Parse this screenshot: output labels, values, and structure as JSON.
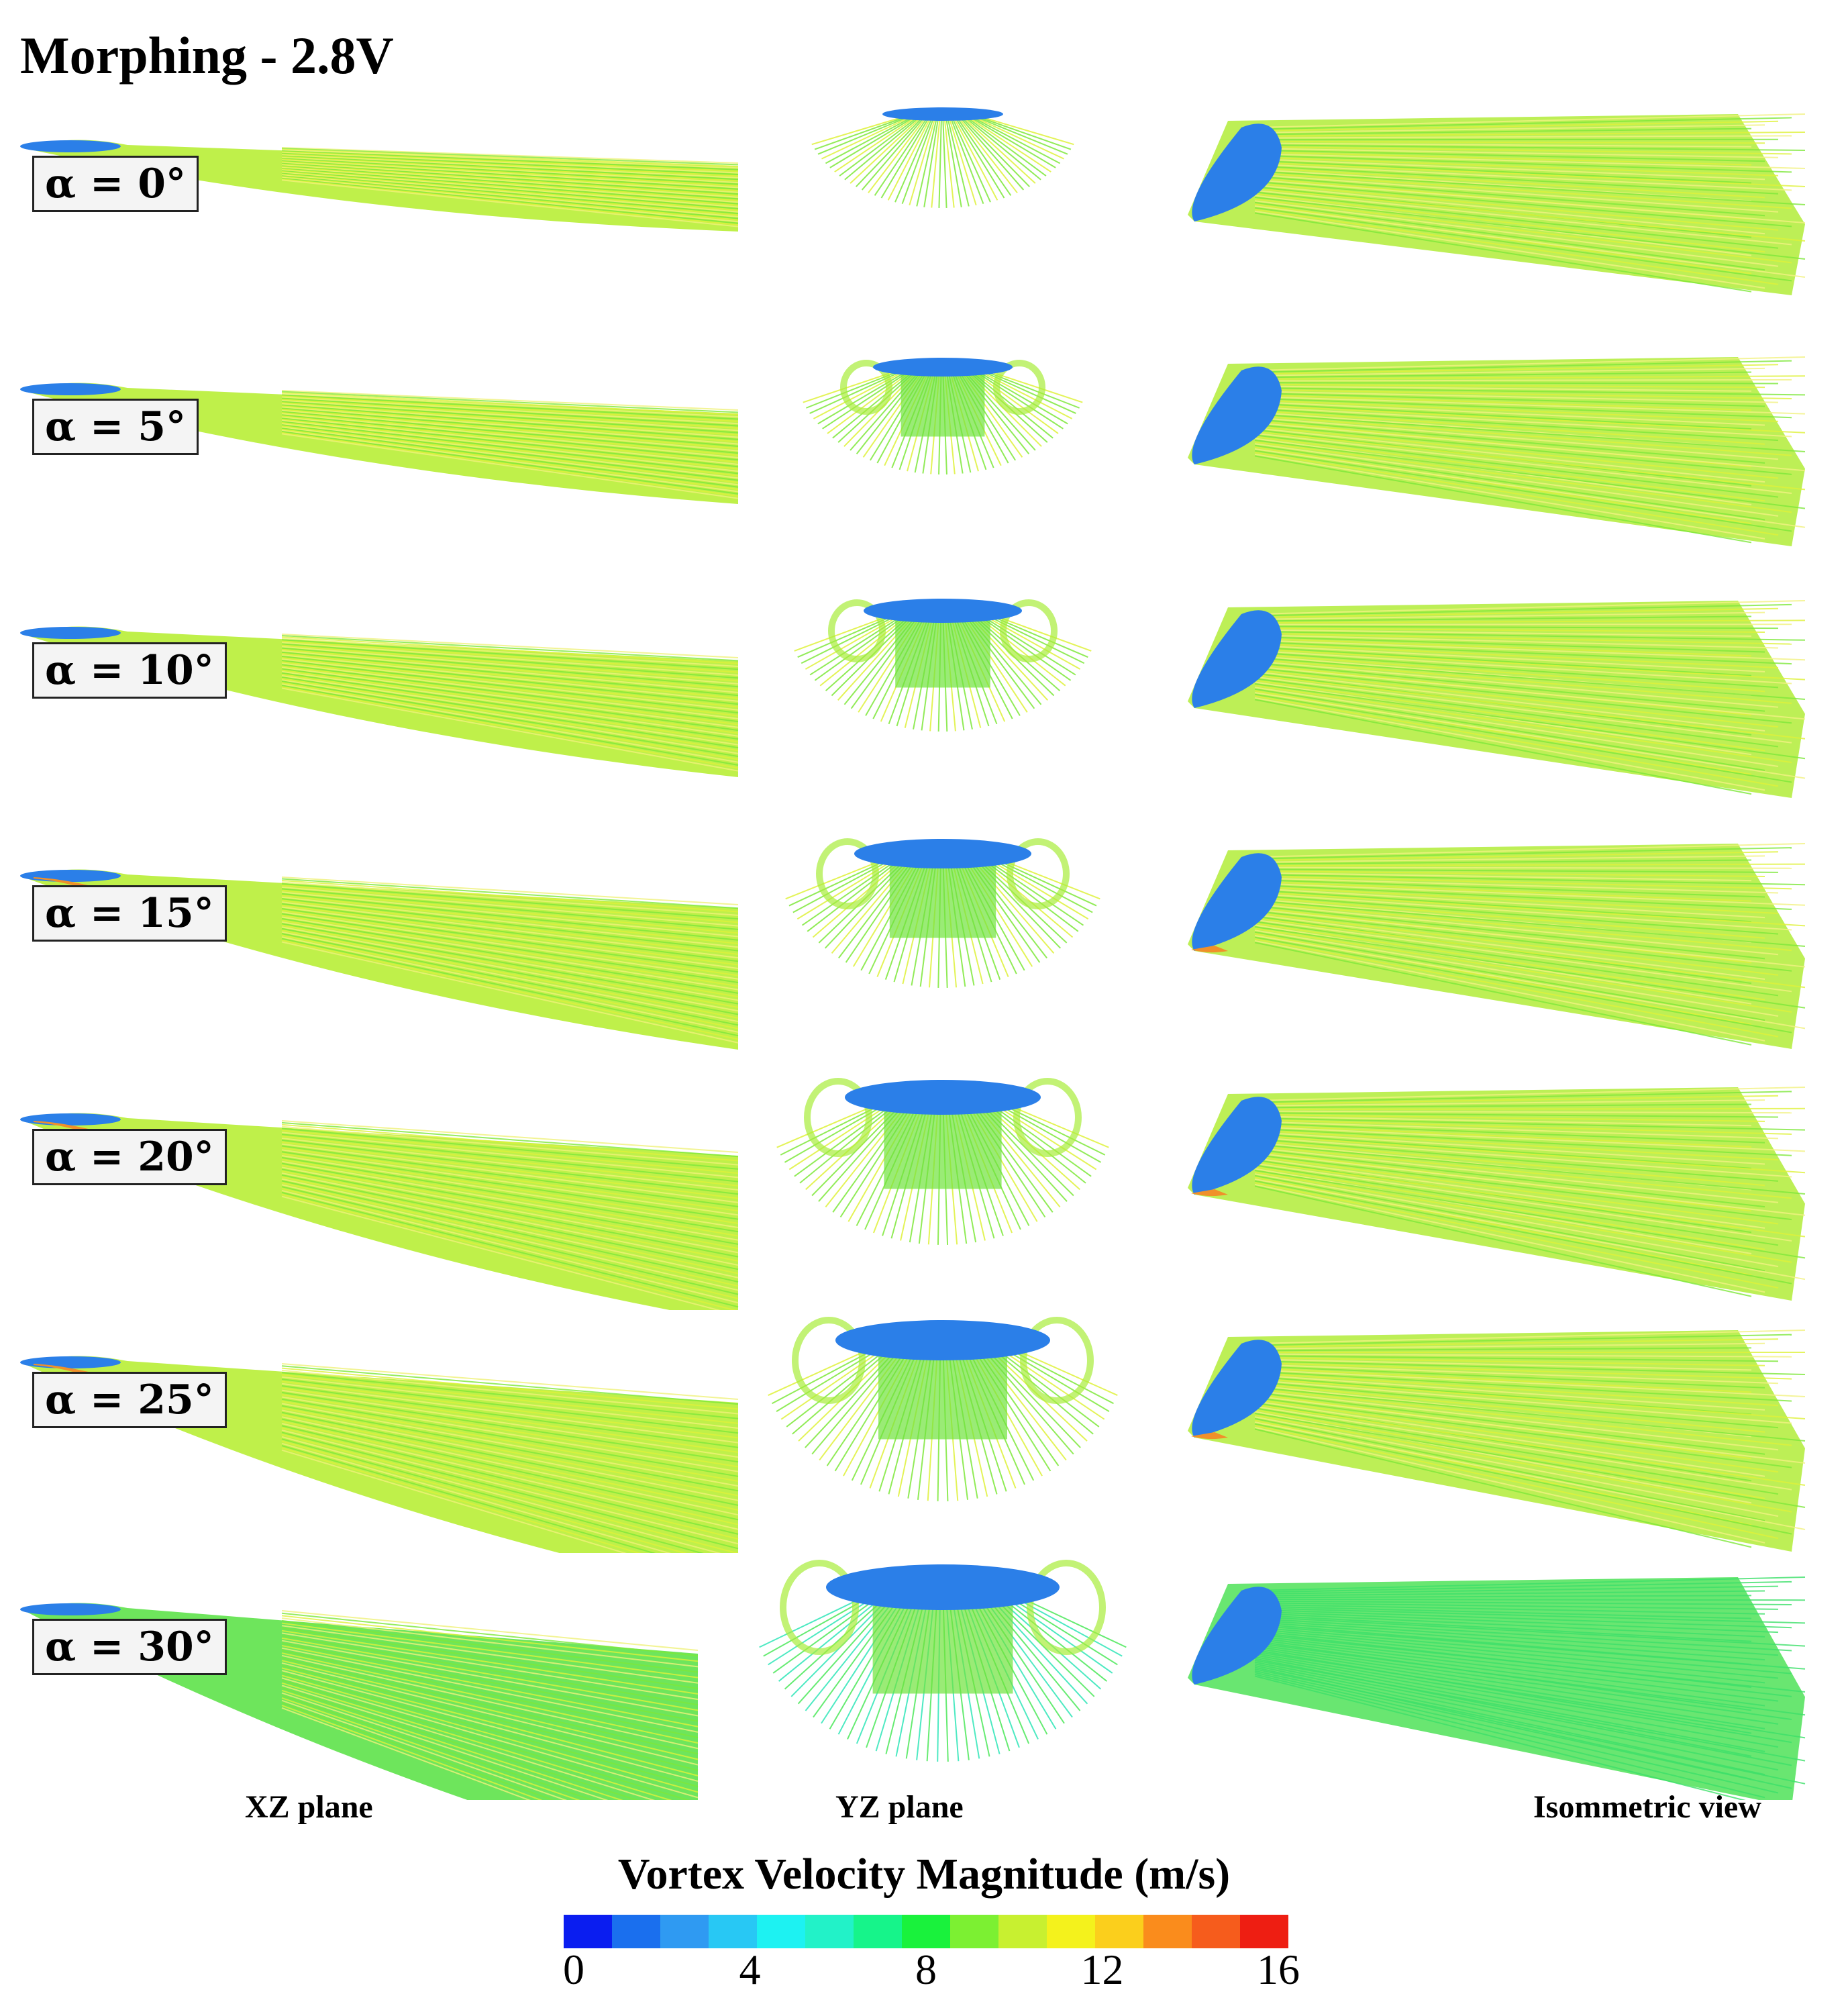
{
  "title": "Morphing - 2.8V",
  "rows": [
    {
      "alpha": "α = 0°"
    },
    {
      "alpha": "α = 5°"
    },
    {
      "alpha": "α = 10°"
    },
    {
      "alpha": "α = 15°"
    },
    {
      "alpha": "α = 20°"
    },
    {
      "alpha": "α = 25°"
    },
    {
      "alpha": "α = 30°"
    }
  ],
  "column_labels": {
    "xz": "XZ plane",
    "yz": "YZ plane",
    "iso": "Isommetric view"
  },
  "colorbar": {
    "title": "Vortex Velocity Magnitude (m/s)",
    "min": 0,
    "max": 16,
    "ticks": [
      "0",
      "4",
      "8",
      "12",
      "16"
    ],
    "colors": [
      "#0a1df0",
      "#1a6fee",
      "#2f9af2",
      "#28c8f4",
      "#1df2f2",
      "#22f2c8",
      "#16f48a",
      "#19f23c",
      "#7cf032",
      "#c8f030",
      "#f4f21c",
      "#fbcf1c",
      "#fa8c1c",
      "#f65c1c",
      "#ee1e12"
    ]
  },
  "colors": {
    "blue_zone": "#2b7fe8",
    "green_flow": "#7ee83a",
    "yellow_flow": "#dff23a",
    "orange_edge": "#f0902a",
    "cyan_flow": "#28e6c8"
  }
}
